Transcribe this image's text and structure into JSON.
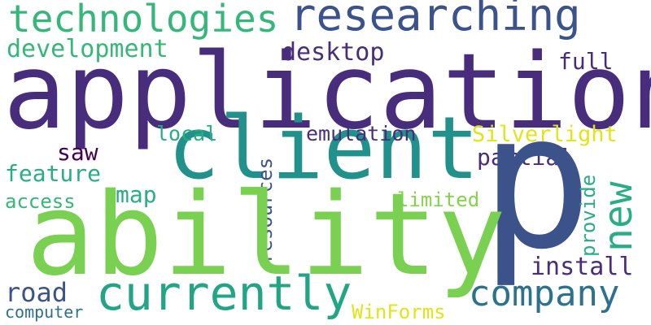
{
  "words": {
    "application": "application",
    "ability": "ability",
    "client": "client",
    "p": "p",
    "researching": "researching",
    "technologies": "technologies",
    "currently": "currently",
    "company": "company",
    "new": "new",
    "development": "development",
    "desktop": "desktop",
    "full": "full",
    "silverlight": "Silverlight",
    "emulation": "emulation",
    "local": "local",
    "saw": "saw",
    "partial": "partial",
    "feature": "feature",
    "map": "map",
    "resources": "resources",
    "access": "access",
    "limited": "limited",
    "provide": "provide",
    "install": "install",
    "road": "road",
    "computer": "computer",
    "winforms": "WinForms"
  },
  "colors": {
    "dark_purple": "#440154",
    "indigo": "#472d7b",
    "slate_blue": "#3b528b",
    "steel_blue": "#2c728e",
    "teal": "#21918c",
    "sea_green": "#28ae80",
    "green": "#5ec962",
    "lime": "#84d44b",
    "yellow": "#e3e418"
  }
}
